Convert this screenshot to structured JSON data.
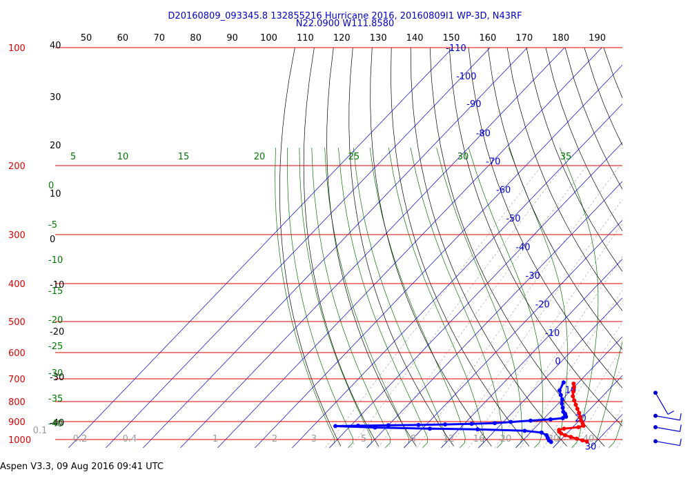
{
  "header": {
    "title_line1": "D20160809_093345.8 132855216 Hurricane 2016, 20160809I1 WP-3D, N43RF",
    "title_line2": "N22.0900 W111.8580"
  },
  "footer": {
    "text": "Aspen V3.3, 09 Aug 2016  09:41 UTC"
  },
  "colors": {
    "isobar": "#dd0000",
    "isotherm": "#0000cc",
    "dry_adiabat": "#000000",
    "moist_adiabat": "#007700",
    "mixing_ratio": "#999999",
    "temperature_trace": "#ff0000",
    "dewpoint_trace": "#0000ff",
    "top_scale": "#000000"
  },
  "chart_data": {
    "type": "scatter",
    "title": "",
    "diagram": "skew-T log-p",
    "pressure_range_hPa": [
      1000,
      100
    ],
    "isobar_labels_hPa": [
      "100",
      "200",
      "300",
      "400",
      "500",
      "600",
      "700",
      "800",
      "900",
      "1000"
    ],
    "isobars_hPa": [
      100,
      200,
      300,
      400,
      500,
      600,
      700,
      800,
      900,
      1000
    ],
    "top_scale_labels": [
      "50",
      "60",
      "70",
      "80",
      "90",
      "100",
      "110",
      "120",
      "130",
      "140",
      "150",
      "160",
      "170",
      "180",
      "190"
    ],
    "top_scale_values": [
      50,
      60,
      70,
      80,
      90,
      100,
      110,
      120,
      130,
      140,
      150,
      160,
      170,
      180,
      190
    ],
    "isotherms_C": [
      -110,
      -100,
      -90,
      -80,
      -70,
      -60,
      -50,
      -40,
      -30,
      -20,
      -10,
      0,
      10,
      20,
      30
    ],
    "isotherm_labels": [
      {
        "text": "-110",
        "T": -110,
        "p": 100
      },
      {
        "text": "-100",
        "T": -100,
        "p": 118
      },
      {
        "text": "-90",
        "T": -90,
        "p": 139
      },
      {
        "text": "-80",
        "T": -80,
        "p": 165
      },
      {
        "text": "-70",
        "T": -70,
        "p": 195
      },
      {
        "text": "-60",
        "T": -60,
        "p": 230
      },
      {
        "text": "-50",
        "T": -50,
        "p": 272
      },
      {
        "text": "-40",
        "T": -40,
        "p": 322
      },
      {
        "text": "-30",
        "T": -30,
        "p": 381
      },
      {
        "text": "-20",
        "T": -20,
        "p": 451
      },
      {
        "text": "-10",
        "T": -10,
        "p": 533
      },
      {
        "text": "0",
        "T": 0,
        "p": 630
      },
      {
        "text": "10",
        "T": 10,
        "p": 745
      },
      {
        "text": "20",
        "T": 20,
        "p": 880
      },
      {
        "text": "30",
        "T": 30,
        "p": 1040
      }
    ],
    "dry_adiabat_labels": [
      "40",
      "30",
      "20",
      "10",
      "0",
      "-10",
      "-20",
      "-30",
      "-40"
    ],
    "dry_adiabat_values": [
      40,
      30,
      20,
      10,
      0,
      -10,
      -20,
      -30,
      -40
    ],
    "moist_adiabat_labels_left": [
      "0",
      "-5",
      "-10",
      "-15",
      "-20",
      "-25",
      "-30",
      "-35",
      "-40"
    ],
    "moist_adiabat_left_values": [
      0,
      -5,
      -10,
      -15,
      -20,
      -25,
      -30,
      -35,
      -40
    ],
    "moist_adiabat_labels_top": [
      "5",
      "10",
      "15",
      "20",
      "25",
      "30",
      "35"
    ],
    "moist_adiabat_top_values": [
      5,
      10,
      15,
      20,
      25,
      30,
      35
    ],
    "mixing_ratio_labels": [
      "0.1",
      "0.2",
      "0.4",
      "1",
      "2",
      "3",
      "5",
      "8",
      "12",
      "16",
      "20",
      "30",
      "40"
    ],
    "mixing_ratio_values_gkg": [
      0.1,
      0.2,
      0.4,
      1,
      2,
      3,
      5,
      8,
      12,
      16,
      20,
      30,
      40
    ],
    "series": [
      {
        "name": "",
        "kind": "temperature",
        "points": [
          {
            "p": 720,
            "T": 9.0
          },
          {
            "p": 735,
            "T": 10.0
          },
          {
            "p": 755,
            "T": 11.0
          },
          {
            "p": 775,
            "T": 12.0
          },
          {
            "p": 795,
            "T": 13.5
          },
          {
            "p": 815,
            "T": 15.0
          },
          {
            "p": 835,
            "T": 16.5
          },
          {
            "p": 855,
            "T": 18.0
          },
          {
            "p": 875,
            "T": 19.3
          },
          {
            "p": 895,
            "T": 20.5
          },
          {
            "p": 912,
            "T": 21.8
          },
          {
            "p": 922,
            "T": 22.5
          },
          {
            "p": 930,
            "T": 21.5
          },
          {
            "p": 938,
            "T": 18.0
          },
          {
            "p": 945,
            "T": 17.0
          },
          {
            "p": 955,
            "T": 17.5
          },
          {
            "p": 965,
            "T": 18.5
          },
          {
            "p": 975,
            "T": 20.0
          },
          {
            "p": 985,
            "T": 22.0
          },
          {
            "p": 995,
            "T": 24.0
          },
          {
            "p": 1005,
            "T": 26.0
          },
          {
            "p": 1012,
            "T": 27.5
          }
        ]
      },
      {
        "name": "",
        "kind": "dewpoint",
        "points": [
          {
            "p": 715,
            "T": 6.0
          },
          {
            "p": 750,
            "T": 7.0
          },
          {
            "p": 770,
            "T": 8.5
          },
          {
            "p": 790,
            "T": 10.0
          },
          {
            "p": 810,
            "T": 11.0
          },
          {
            "p": 830,
            "T": 12.3
          },
          {
            "p": 850,
            "T": 13.5
          },
          {
            "p": 860,
            "T": 14.5
          },
          {
            "p": 868,
            "T": 15.0
          },
          {
            "p": 875,
            "T": 15.5
          },
          {
            "p": 882,
            "T": 15.0
          },
          {
            "p": 888,
            "T": 12.0
          },
          {
            "p": 895,
            "T": 7.0
          },
          {
            "p": 902,
            "T": 2.0
          },
          {
            "p": 908,
            "T": -2.0
          },
          {
            "p": 912,
            "T": -8.0
          },
          {
            "p": 915,
            "T": -15.0
          },
          {
            "p": 918,
            "T": -22.0
          },
          {
            "p": 920,
            "T": -30.0
          },
          {
            "p": 922,
            "T": -38.0
          },
          {
            "p": 924,
            "T": -44.0
          },
          {
            "p": 932,
            "T": -33.0
          },
          {
            "p": 938,
            "T": -18.0
          },
          {
            "p": 942,
            "T": -5.0
          },
          {
            "p": 950,
            "T": 8.0
          },
          {
            "p": 960,
            "T": 13.0
          },
          {
            "p": 975,
            "T": 15.0
          },
          {
            "p": 990,
            "T": 16.0
          },
          {
            "p": 1005,
            "T": 17.0
          },
          {
            "p": 1015,
            "T": 18.0
          }
        ]
      }
    ],
    "wind_barbs": [
      {
        "p": 760,
        "direction_deg": 330,
        "speed_kt": 10
      },
      {
        "p": 870,
        "direction_deg": 280,
        "speed_kt": 10
      },
      {
        "p": 930,
        "direction_deg": 280,
        "speed_kt": 10
      },
      {
        "p": 1010,
        "direction_deg": 280,
        "speed_kt": 10
      }
    ]
  }
}
